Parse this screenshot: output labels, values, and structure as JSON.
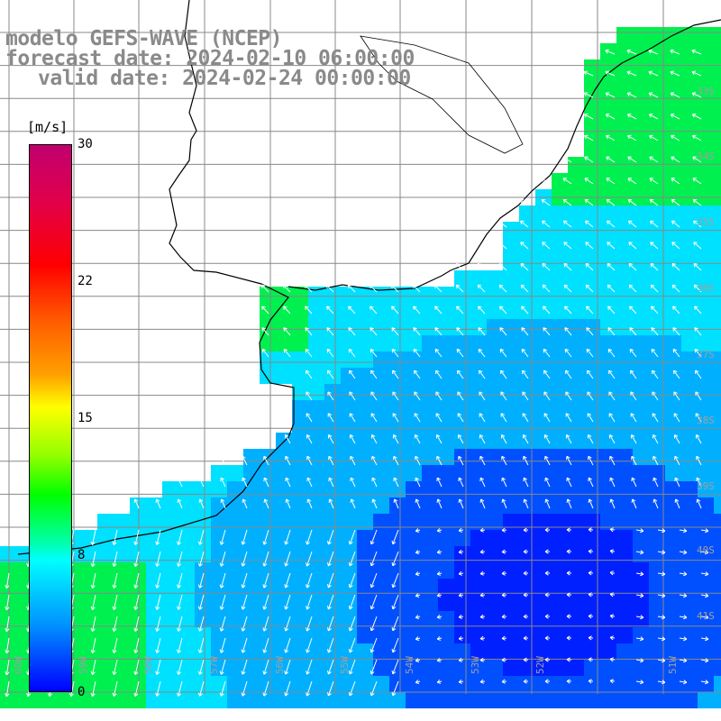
{
  "title": {
    "line1": "modelo GEFS-WAVE (NCEP)",
    "line2": "forecast date: 2024-02-10 06:00:00",
    "line3": "valid date: 2024-02-24 00:00:00"
  },
  "colorbar": {
    "unit": "[m/s]",
    "ticks": [
      "30",
      "22",
      "15",
      "8",
      "0"
    ],
    "stops": [
      "#0000ff",
      "#0090ff",
      "#00ffff",
      "#00ff00",
      "#ffff00",
      "#ff0000",
      "#c0006e"
    ]
  },
  "lat_labels": [
    "33S",
    "34S",
    "35S",
    "36S",
    "37S",
    "38S",
    "39S",
    "40S",
    "41S"
  ],
  "lon_labels": [
    "60W",
    "59W",
    "58W",
    "57W",
    "56W",
    "55W",
    "54W",
    "53W",
    "52W",
    "51W"
  ],
  "field_colors": {
    "strong_green": "#00f050",
    "cyan": "#00e0ff",
    "light_blue": "#00b0ff",
    "blue": "#0050ff",
    "deep_blue": "#0020ff"
  }
}
